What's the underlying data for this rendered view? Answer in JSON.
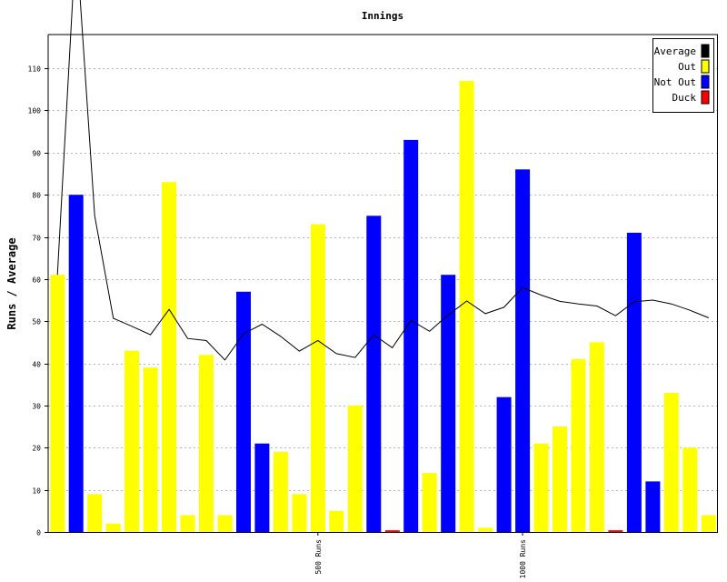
{
  "chart_data": {
    "type": "bar",
    "title": "Innings",
    "ylabel": "Runs / Average",
    "xlabel": "",
    "ylim": [
      0,
      118
    ],
    "yticks": [
      0,
      10,
      20,
      30,
      40,
      50,
      60,
      70,
      80,
      90,
      100,
      110
    ],
    "grid": true,
    "legend_position": "top-right",
    "legend": [
      {
        "label": "Average",
        "color": "#000000"
      },
      {
        "label": "Out",
        "color": "#ffff00"
      },
      {
        "label": "Not Out",
        "color": "#0000ff"
      },
      {
        "label": "Duck",
        "color": "#ff0000"
      }
    ],
    "milestones": [
      {
        "label": "500 Runs",
        "after_innings": 14
      },
      {
        "label": "1000 Runs",
        "after_innings": 25
      }
    ],
    "innings": [
      {
        "runs": 61,
        "status": "Out",
        "average": 61
      },
      {
        "runs": 80,
        "status": "Not Out",
        "average": 141
      },
      {
        "runs": 9,
        "status": "Out",
        "average": 75
      },
      {
        "runs": 2,
        "status": "Out",
        "average": 50.7
      },
      {
        "runs": 43,
        "status": "Out",
        "average": 48.8
      },
      {
        "runs": 39,
        "status": "Out",
        "average": 46.8
      },
      {
        "runs": 83,
        "status": "Out",
        "average": 52.8
      },
      {
        "runs": 4,
        "status": "Out",
        "average": 45.9
      },
      {
        "runs": 42,
        "status": "Out",
        "average": 45.4
      },
      {
        "runs": 4,
        "status": "Out",
        "average": 40.8
      },
      {
        "runs": 57,
        "status": "Not Out",
        "average": 47
      },
      {
        "runs": 21,
        "status": "Not Out",
        "average": 49.3
      },
      {
        "runs": 19,
        "status": "Out",
        "average": 46.4
      },
      {
        "runs": 9,
        "status": "Out",
        "average": 42.9
      },
      {
        "runs": 73,
        "status": "Out",
        "average": 45.4
      },
      {
        "runs": 5,
        "status": "Out",
        "average": 42.3
      },
      {
        "runs": 30,
        "status": "Out",
        "average": 41.4
      },
      {
        "runs": 75,
        "status": "Not Out",
        "average": 46.8
      },
      {
        "runs": 0.4,
        "status": "Duck",
        "average": 43.7
      },
      {
        "runs": 93,
        "status": "Not Out",
        "average": 50.2
      },
      {
        "runs": 14,
        "status": "Out",
        "average": 47.6
      },
      {
        "runs": 61,
        "status": "Not Out",
        "average": 51.5
      },
      {
        "runs": 107,
        "status": "Out",
        "average": 54.8
      },
      {
        "runs": 1,
        "status": "Out",
        "average": 51.8
      },
      {
        "runs": 32,
        "status": "Not Out",
        "average": 53.3
      },
      {
        "runs": 86,
        "status": "Not Out",
        "average": 58
      },
      {
        "runs": 21,
        "status": "Out",
        "average": 56.2
      },
      {
        "runs": 25,
        "status": "Out",
        "average": 54.7
      },
      {
        "runs": 41,
        "status": "Out",
        "average": 54.1
      },
      {
        "runs": 45,
        "status": "Out",
        "average": 53.6
      },
      {
        "runs": 0.4,
        "status": "Duck",
        "average": 51.3
      },
      {
        "runs": 71,
        "status": "Not Out",
        "average": 54.6
      },
      {
        "runs": 12,
        "status": "Not Out",
        "average": 55
      },
      {
        "runs": 33,
        "status": "Out",
        "average": 54.1
      },
      {
        "runs": 20,
        "status": "Out",
        "average": 52.6
      },
      {
        "runs": 4,
        "status": "Out",
        "average": 50.8
      }
    ]
  }
}
